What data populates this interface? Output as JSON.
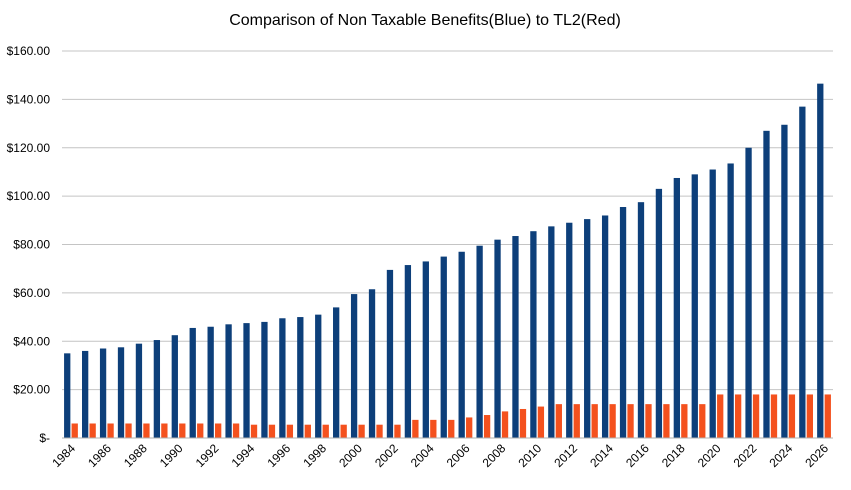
{
  "chart_data": {
    "type": "bar",
    "title": "Comparison of Non Taxable Benefits(Blue) to TL2(Red)",
    "xlabel": "",
    "ylabel": "",
    "ylim": [
      0,
      160
    ],
    "ytick_values": [
      0,
      20,
      40,
      60,
      80,
      100,
      120,
      140,
      160
    ],
    "ytick_labels": [
      "$-",
      "$20.00",
      "$40.00",
      "$60.00",
      "$80.00",
      "$100.00",
      "$120.00",
      "$140.00",
      "$160.00"
    ],
    "grid": true,
    "legend": "none",
    "categories": [
      "1984",
      "1985",
      "1986",
      "1987",
      "1988",
      "1989",
      "1990",
      "1991",
      "1992",
      "1993",
      "1994",
      "1995",
      "1996",
      "1997",
      "1998",
      "1999",
      "2000",
      "2001",
      "2002",
      "2003",
      "2004",
      "2005",
      "2006",
      "2007",
      "2008",
      "2009",
      "2010",
      "2011",
      "2012",
      "2013",
      "2014",
      "2015",
      "2016",
      "2017",
      "2018",
      "2019",
      "2020",
      "2021",
      "2022",
      "2023",
      "2024",
      "2025",
      "2026"
    ],
    "xtick_labels": [
      "1984",
      "",
      "1986",
      "",
      "1988",
      "",
      "1990",
      "",
      "1992",
      "",
      "1994",
      "",
      "1996",
      "",
      "1998",
      "",
      "2000",
      "",
      "2002",
      "",
      "2004",
      "",
      "2006",
      "",
      "2008",
      "",
      "2010",
      "",
      "2012",
      "",
      "2014",
      "",
      "2016",
      "",
      "2018",
      "",
      "2020",
      "",
      "2022",
      "",
      "2024",
      "",
      "2026"
    ],
    "series": [
      {
        "name": "Non Taxable Benefits",
        "color": "#0d3f7a",
        "values": [
          35,
          36,
          37,
          37.5,
          39,
          40.5,
          42.5,
          45.5,
          46,
          47,
          47.5,
          48,
          49.5,
          50,
          51,
          54,
          59.5,
          61.5,
          69.5,
          71.5,
          73,
          75,
          77,
          79.5,
          82,
          83.5,
          85.5,
          87.5,
          89,
          90.5,
          92,
          95.5,
          97.5,
          103,
          107.5,
          109,
          111,
          113.5,
          120,
          127,
          129.5,
          137,
          146.5
        ]
      },
      {
        "name": "TL2",
        "color": "#f4511e",
        "values": [
          6,
          6,
          6,
          6,
          6,
          6,
          6,
          6,
          6,
          6,
          5.5,
          5.5,
          5.5,
          5.5,
          5.5,
          5.5,
          5.5,
          5.5,
          5.5,
          7.5,
          7.5,
          7.5,
          8.5,
          9.5,
          11,
          12,
          13,
          14,
          14,
          14,
          14,
          14,
          14,
          14,
          14,
          14,
          18,
          18,
          18,
          18,
          18,
          18,
          18
        ]
      }
    ]
  }
}
